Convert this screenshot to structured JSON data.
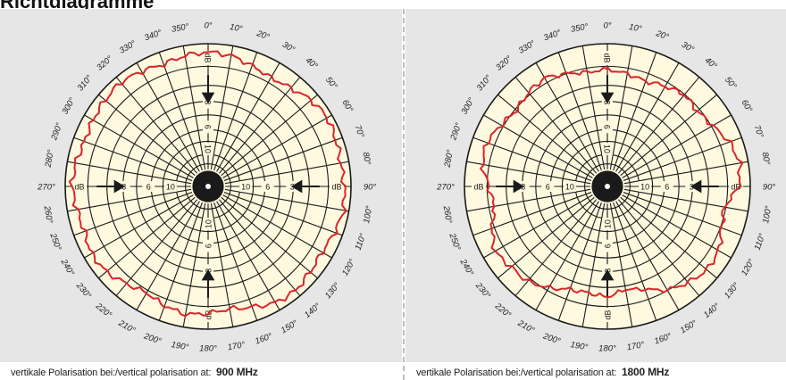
{
  "title": "Richtdiagramme",
  "colors": {
    "panel_bg": "#e6e6e6",
    "disc_bg": "#fff9df",
    "grid": "#1a1a1a",
    "pattern": "#d9262b"
  },
  "angle_labels": [
    "0°",
    "10°",
    "20°",
    "30°",
    "40°",
    "50°",
    "60°",
    "70°",
    "80°",
    "90°",
    "100°",
    "110°",
    "120°",
    "130°",
    "140°",
    "150°",
    "160°",
    "170°",
    "180°",
    "190°",
    "200°",
    "210°",
    "220°",
    "230°",
    "240°",
    "250°",
    "260°",
    "270°",
    "280°",
    "290°",
    "300°",
    "310°",
    "320°",
    "330°",
    "340°",
    "350°"
  ],
  "ring_labels": [
    "3",
    "6",
    "10"
  ],
  "db_label": "dB",
  "diagrams": [
    {
      "caption_text": "vertikale Polarisation bei:/vertical polarisation at:",
      "frequency": "900 MHz",
      "pattern_db": [
        -0.4,
        -0.5,
        -0.8,
        -1.0,
        -0.8,
        -0.4,
        -0.2,
        -0.3,
        -0.4,
        -0.3,
        -0.2,
        -0.4,
        -0.6,
        -0.5,
        -0.3,
        -0.4,
        -0.8,
        -1.1,
        -0.9,
        -0.7,
        -0.9,
        -1.2,
        -0.9,
        -0.5,
        -0.4,
        -0.6,
        -0.5,
        -0.3,
        -0.4,
        -0.6,
        -0.5,
        -0.4,
        -0.3,
        -0.5,
        -0.7,
        -0.5
      ]
    },
    {
      "caption_text": "vertikale Polarisation bei:/vertical polarisation at:",
      "frequency": "1800 MHz",
      "pattern_db": [
        -1.6,
        -1.8,
        -2.0,
        -1.7,
        -1.4,
        -1.6,
        -1.3,
        -0.7,
        -0.4,
        -0.6,
        -1.5,
        -1.3,
        -0.8,
        -0.7,
        -1.0,
        -1.4,
        -2.2,
        -2.6,
        -2.1,
        -2.3,
        -2.2,
        -1.6,
        -1.1,
        -1.0,
        -0.7,
        -1.2,
        -1.8,
        -1.5,
        -0.9,
        -0.8,
        -1.2,
        -1.5,
        -1.2,
        -1.0,
        -1.4,
        -1.7
      ]
    }
  ]
}
